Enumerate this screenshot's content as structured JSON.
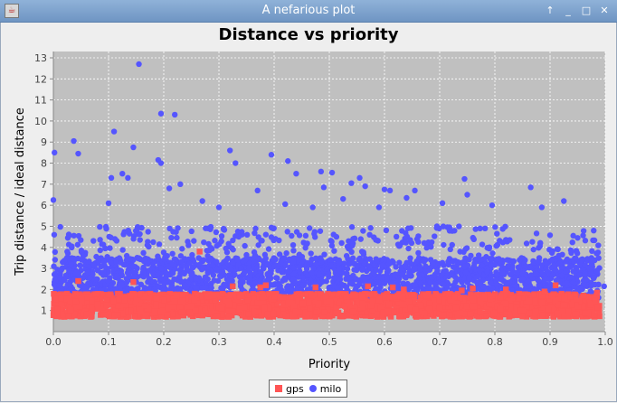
{
  "window": {
    "title": "A nefarious plot"
  },
  "colors": {
    "gps": "#ff5555",
    "milo": "#5555ff",
    "plot_bg": "#c0c0c0",
    "grid": "#ffffff"
  },
  "chart_data": {
    "type": "scatter",
    "title": "Distance vs priority",
    "xlabel": "Priority",
    "ylabel": "Trip distance / ideal distance",
    "xlim": [
      0.0,
      1.0
    ],
    "ylim": [
      0,
      13.3
    ],
    "x_ticks": [
      "0.0",
      "0.1",
      "0.2",
      "0.3",
      "0.4",
      "0.5",
      "0.6",
      "0.7",
      "0.8",
      "0.9",
      "1.0"
    ],
    "y_ticks": [
      "1",
      "2",
      "3",
      "4",
      "5",
      "6",
      "7",
      "8",
      "9",
      "10",
      "11",
      "12",
      "13"
    ],
    "grid": true,
    "legend_position": "bottom-center",
    "series": [
      {
        "name": "gps",
        "marker": "square",
        "note_points": [
          [
            0.045,
            2.4
          ],
          [
            0.145,
            2.35
          ],
          [
            0.265,
            3.8
          ],
          [
            0.325,
            2.15
          ],
          [
            0.375,
            2.1
          ],
          [
            0.385,
            2.2
          ],
          [
            0.475,
            2.1
          ],
          [
            0.57,
            2.15
          ],
          [
            0.615,
            2.1
          ],
          [
            0.635,
            2.0
          ],
          [
            0.74,
            1.95
          ],
          [
            0.76,
            2.05
          ],
          [
            0.82,
            2.0
          ],
          [
            0.89,
            1.9
          ],
          [
            0.91,
            2.2
          ],
          [
            0.985,
            1.85
          ]
        ],
        "main_band": {
          "x": [
            0.0,
            0.99
          ],
          "y": [
            0.7,
            1.8
          ]
        }
      },
      {
        "name": "milo",
        "marker": "circle",
        "note_points": [
          [
            0.002,
            8.5
          ],
          [
            0.0,
            6.25
          ],
          [
            0.037,
            9.05
          ],
          [
            0.045,
            8.45
          ],
          [
            0.1,
            6.1
          ],
          [
            0.105,
            7.3
          ],
          [
            0.11,
            9.5
          ],
          [
            0.125,
            7.5
          ],
          [
            0.135,
            7.3
          ],
          [
            0.145,
            8.75
          ],
          [
            0.155,
            12.7
          ],
          [
            0.19,
            8.15
          ],
          [
            0.195,
            10.35
          ],
          [
            0.195,
            8.0
          ],
          [
            0.21,
            6.8
          ],
          [
            0.22,
            10.3
          ],
          [
            0.23,
            7.0
          ],
          [
            0.27,
            6.2
          ],
          [
            0.3,
            5.9
          ],
          [
            0.32,
            8.6
          ],
          [
            0.33,
            8.0
          ],
          [
            0.37,
            6.7
          ],
          [
            0.395,
            8.4
          ],
          [
            0.42,
            6.05
          ],
          [
            0.425,
            8.1
          ],
          [
            0.44,
            7.5
          ],
          [
            0.47,
            5.9
          ],
          [
            0.485,
            7.6
          ],
          [
            0.49,
            6.85
          ],
          [
            0.505,
            7.55
          ],
          [
            0.525,
            6.3
          ],
          [
            0.54,
            7.05
          ],
          [
            0.555,
            7.3
          ],
          [
            0.565,
            6.9
          ],
          [
            0.59,
            5.9
          ],
          [
            0.6,
            6.75
          ],
          [
            0.61,
            6.7
          ],
          [
            0.64,
            6.35
          ],
          [
            0.655,
            6.7
          ],
          [
            0.705,
            6.1
          ],
          [
            0.745,
            7.25
          ],
          [
            0.75,
            6.5
          ],
          [
            0.795,
            6.0
          ],
          [
            0.865,
            6.85
          ],
          [
            0.885,
            5.9
          ],
          [
            0.925,
            6.2
          ],
          [
            0.95,
            4.45
          ],
          [
            0.975,
            3.35
          ],
          [
            0.985,
            2.85
          ],
          [
            0.998,
            2.15
          ]
        ],
        "main_band": {
          "x": [
            0.0,
            0.99
          ],
          "y": [
            1.3,
            5.0
          ]
        }
      }
    ]
  }
}
